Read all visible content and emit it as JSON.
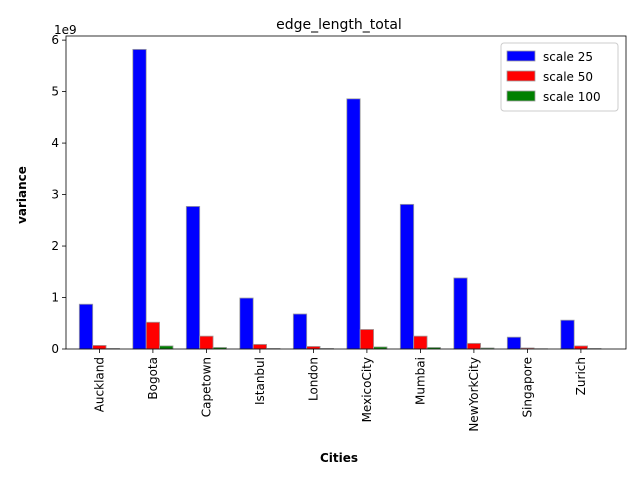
{
  "chart_data": {
    "type": "bar",
    "title": "edge_length_total",
    "xlabel": "Cities",
    "ylabel": "variance",
    "y_multiplier_label": "1e9",
    "ylim": [
      0,
      6.08
    ],
    "yticks": [
      "0",
      "1",
      "2",
      "3",
      "4",
      "5",
      "6"
    ],
    "legend_placement": "top-right",
    "grid": false,
    "categories": [
      "Auckland",
      "Bogota",
      "Capetown",
      "Istanbul",
      "London",
      "MexicoCity",
      "Mumbai",
      "NewYorkCity",
      "Singapore",
      "Zurich"
    ],
    "series": [
      {
        "name": "scale 25",
        "color": "#0000ff",
        "values": [
          0.87,
          5.82,
          2.77,
          0.99,
          0.68,
          4.86,
          2.81,
          1.38,
          0.23,
          0.56
        ]
      },
      {
        "name": "scale 50",
        "color": "#ff0000",
        "values": [
          0.07,
          0.52,
          0.25,
          0.09,
          0.05,
          0.38,
          0.25,
          0.11,
          0.02,
          0.06
        ]
      },
      {
        "name": "scale 100",
        "color": "#008000",
        "values": [
          0.01,
          0.06,
          0.03,
          0.01,
          0.01,
          0.04,
          0.03,
          0.02,
          0.005,
          0.01
        ]
      }
    ]
  }
}
